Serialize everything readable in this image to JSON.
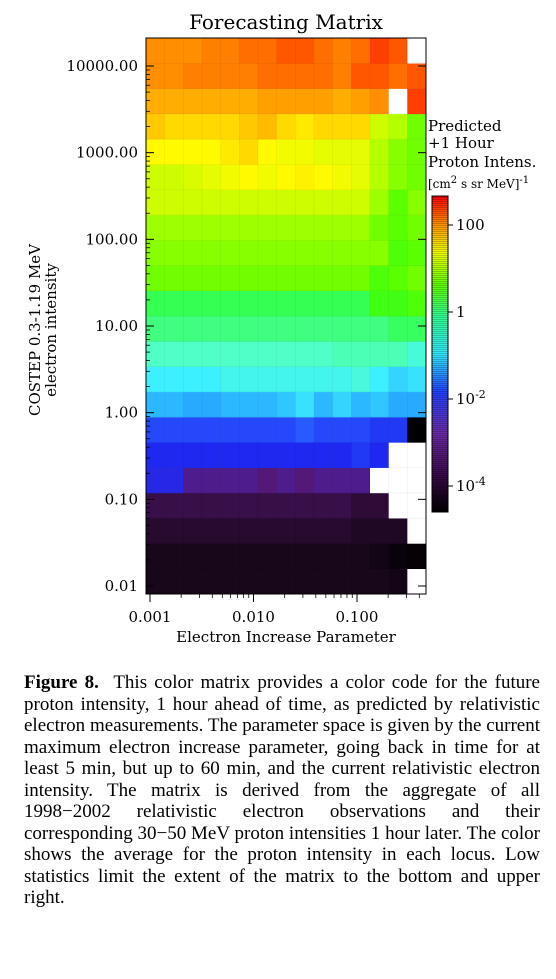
{
  "chart_data": {
    "type": "heatmap",
    "title": "Forecasting Matrix",
    "xlabel": "Electron Increase Parameter",
    "ylabel": "COSTEP 0.3-1.19 MeV",
    "ylabel2": "electron intensity",
    "x_scale": "log",
    "y_scale": "log",
    "x_ticks": [
      "0.001",
      "0.010",
      "0.100"
    ],
    "y_ticks": [
      "0.01",
      "0.10",
      "1.00",
      "10.00",
      "100.00",
      "1000.00",
      "10000.00"
    ],
    "colorbar": {
      "title_lines": [
        "Predicted",
        "+1 Hour",
        "Proton Intens."
      ],
      "unit": "[cm",
      "unit_sup1": "2",
      "unit_mid": " s sr MeV]",
      "unit_sup2": "-1",
      "ticks": [
        {
          "base": "100",
          "exp": ""
        },
        {
          "base": "1",
          "exp": ""
        },
        {
          "base": "10",
          "exp": "-2"
        },
        {
          "base": "10",
          "exp": "-4"
        }
      ],
      "range": [
        5e-05,
        400
      ],
      "scale": "log"
    },
    "cells_note_rows_bottom_to_top": "log10 proton intensity per cell; null = no data (white)",
    "rows": [
      [
        -4.3,
        -4.3,
        -4.3,
        -4.3,
        -4.3,
        -4.3,
        -4.3,
        -4.3,
        -4.3,
        -4.3,
        -4.3,
        -4.3,
        -4.3,
        -4.4,
        null
      ],
      [
        -4.3,
        -4.3,
        -4.3,
        -4.3,
        -4.3,
        -4.3,
        -4.3,
        -4.3,
        -4.3,
        -4.3,
        -4.3,
        -4.3,
        -4.4,
        -4.6,
        -4.7
      ],
      [
        -4.1,
        -4.1,
        -4.1,
        -4.1,
        -4.1,
        -4.1,
        -4.1,
        -4.1,
        -4.1,
        -4.1,
        -4.1,
        -4.2,
        -4.2,
        -4.2,
        null
      ],
      [
        -3.9,
        -3.9,
        -3.9,
        -3.9,
        -3.9,
        -3.9,
        -3.9,
        -3.9,
        -3.9,
        -3.9,
        -3.9,
        -4.0,
        -4.0,
        null,
        null
      ],
      [
        -2.9,
        -2.9,
        -3.5,
        -3.5,
        -3.5,
        -3.5,
        -3.6,
        -3.5,
        -3.6,
        -3.5,
        -3.5,
        -3.5,
        null,
        null,
        null
      ],
      [
        -2.8,
        -2.8,
        -2.8,
        -2.8,
        -2.8,
        -2.8,
        -2.8,
        -2.8,
        -2.8,
        -2.8,
        -2.8,
        -2.7,
        -2.8,
        null,
        null
      ],
      [
        -2.6,
        -2.6,
        -2.6,
        -2.6,
        -2.6,
        -2.6,
        -2.6,
        -2.6,
        -2.5,
        -2.6,
        -2.6,
        -2.6,
        -2.7,
        -2.7,
        -4.8
      ],
      [
        -1.7,
        -1.7,
        -1.8,
        -1.8,
        -1.7,
        -1.7,
        -1.7,
        -1.6,
        -1.4,
        -1.7,
        -1.5,
        -1.7,
        -1.6,
        -1.8,
        -1.8
      ],
      [
        -1.3,
        -1.3,
        -1.3,
        -1.3,
        -1.2,
        -1.2,
        -1.2,
        -1.2,
        -1.2,
        -1.2,
        -1.2,
        -1.1,
        -1.3,
        -1.5,
        -1.4
      ],
      [
        -1.0,
        -1.0,
        -1.0,
        -1.0,
        -1.0,
        -1.0,
        -1.0,
        -1.0,
        -1.0,
        -1.0,
        -0.9,
        -0.9,
        -0.9,
        -0.9,
        -1.1
      ],
      [
        -0.6,
        -0.6,
        -0.6,
        -0.6,
        -0.6,
        -0.6,
        -0.6,
        -0.6,
        -0.6,
        -0.6,
        -0.6,
        -0.6,
        -0.6,
        -0.4,
        -0.4
      ],
      [
        -0.3,
        -0.3,
        -0.3,
        -0.3,
        -0.3,
        -0.3,
        -0.3,
        -0.3,
        -0.3,
        -0.3,
        -0.3,
        -0.3,
        0.2,
        0.2,
        0.3
      ],
      [
        0.5,
        0.5,
        0.5,
        0.5,
        0.5,
        0.5,
        0.5,
        0.5,
        0.5,
        0.5,
        0.5,
        0.5,
        0.3,
        0.4,
        0.5
      ],
      [
        0.6,
        0.6,
        0.6,
        0.6,
        0.6,
        0.6,
        0.6,
        0.6,
        0.6,
        0.6,
        0.6,
        0.6,
        0.6,
        0.3,
        0.4
      ],
      [
        0.7,
        0.7,
        0.7,
        0.7,
        0.7,
        0.7,
        0.7,
        0.7,
        0.7,
        0.7,
        0.7,
        0.7,
        0.5,
        0.4,
        0.5
      ],
      [
        0.9,
        0.9,
        0.9,
        0.9,
        0.9,
        0.9,
        0.9,
        0.9,
        0.9,
        0.9,
        0.9,
        0.9,
        0.7,
        0.4,
        0.6
      ],
      [
        0.9,
        0.9,
        0.95,
        1.0,
        1.05,
        1.1,
        1.05,
        1.1,
        1.15,
        1.1,
        1.05,
        1.0,
        0.8,
        0.6,
        0.5
      ],
      [
        1.1,
        1.1,
        1.1,
        1.1,
        1.2,
        1.3,
        1.1,
        1.05,
        1.05,
        1.0,
        1.0,
        1.0,
        0.8,
        0.6,
        0.5
      ],
      [
        1.4,
        1.3,
        1.3,
        1.3,
        1.3,
        1.4,
        1.5,
        1.3,
        1.2,
        1.3,
        1.3,
        1.3,
        0.9,
        0.8,
        0.5
      ],
      [
        1.6,
        1.6,
        1.6,
        1.6,
        1.6,
        1.6,
        1.7,
        1.7,
        1.7,
        1.7,
        1.6,
        1.7,
        1.8,
        null,
        2.2
      ],
      [
        1.8,
        1.8,
        1.9,
        1.9,
        1.9,
        1.9,
        2.0,
        2.0,
        2.0,
        2.0,
        1.9,
        2.1,
        2.1,
        2.0,
        2.1
      ],
      [
        1.8,
        1.8,
        1.8,
        1.9,
        1.9,
        2.0,
        2.0,
        2.1,
        2.1,
        2.0,
        1.9,
        2.0,
        2.2,
        2.1,
        null
      ]
    ]
  },
  "caption": {
    "label": "Figure 8.",
    "text": "This color matrix provides a color code for the future proton intensity, 1 hour ahead of time, as predicted by relativistic electron measurements. The parameter space is given by the current maximum electron increase parameter, going back in time for at least 5 min, but up to 60 min, and the current relativistic electron intensity. The matrix is derived from the aggregate of all 1998−2002 relativistic electron observations and their corresponding 30−50 MeV proton intensities 1 hour later. The color shows the average for the proton intensity in each locus. Low statistics limit the extent of the matrix to the bottom and upper right."
  }
}
